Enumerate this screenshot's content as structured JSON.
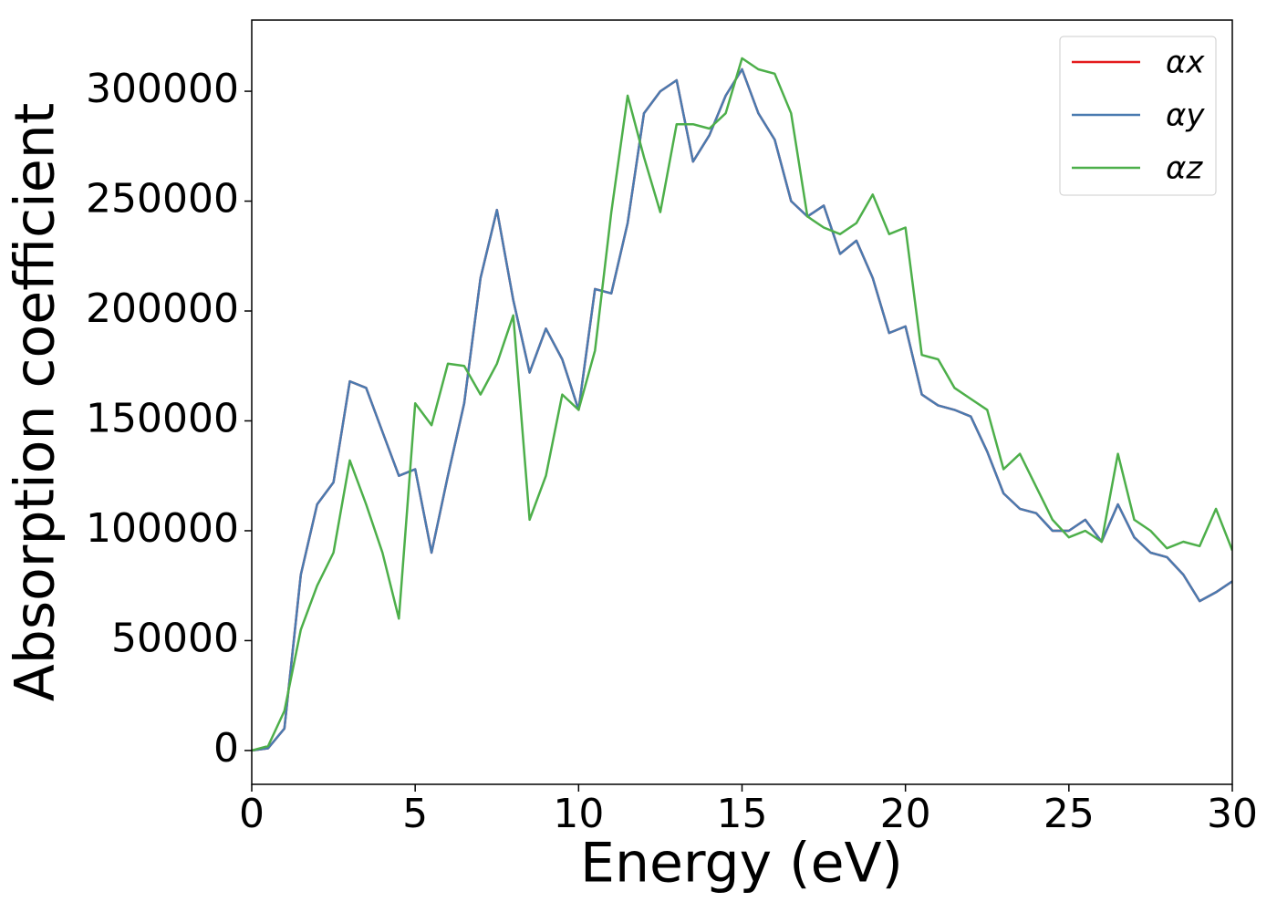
{
  "chart_data": {
    "type": "line",
    "xlabel": "Energy (eV)",
    "ylabel": "Absorption coefficient",
    "x": [
      0,
      0.5,
      1,
      1.5,
      2,
      2.5,
      3,
      3.5,
      4,
      4.5,
      5,
      5.5,
      6,
      6.5,
      7,
      7.5,
      8,
      8.5,
      9,
      9.5,
      10,
      10.5,
      11,
      11.5,
      12,
      12.5,
      13,
      13.5,
      14,
      14.5,
      15,
      15.5,
      16,
      16.5,
      17,
      17.5,
      18,
      18.5,
      19,
      19.5,
      20,
      20.5,
      21,
      21.5,
      22,
      22.5,
      23,
      23.5,
      24,
      24.5,
      25,
      25.5,
      26,
      26.5,
      27,
      27.5,
      28,
      28.5,
      29,
      29.5,
      30
    ],
    "series": [
      {
        "name": "αx",
        "color": "#e41a1c",
        "values": [
          0,
          1000,
          10000,
          80000,
          112000,
          122000,
          168000,
          165000,
          145000,
          125000,
          128000,
          90000,
          125000,
          158000,
          215000,
          246000,
          205000,
          172000,
          192000,
          178000,
          155000,
          210000,
          208000,
          240000,
          290000,
          300000,
          305000,
          268000,
          280000,
          298000,
          310000,
          290000,
          278000,
          250000,
          243000,
          248000,
          226000,
          232000,
          215000,
          190000,
          193000,
          162000,
          157000,
          155000,
          152000,
          136000,
          117000,
          110000,
          108000,
          100000,
          100000,
          105000,
          95000,
          112000,
          97000,
          90000,
          88000,
          80000,
          68000,
          72000,
          77000
        ]
      },
      {
        "name": "αy",
        "color": "#4a7bb0",
        "values": [
          0,
          1000,
          10000,
          80000,
          112000,
          122000,
          168000,
          165000,
          145000,
          125000,
          128000,
          90000,
          125000,
          158000,
          215000,
          246000,
          205000,
          172000,
          192000,
          178000,
          155000,
          210000,
          208000,
          240000,
          290000,
          300000,
          305000,
          268000,
          280000,
          298000,
          310000,
          290000,
          278000,
          250000,
          243000,
          248000,
          226000,
          232000,
          215000,
          190000,
          193000,
          162000,
          157000,
          155000,
          152000,
          136000,
          117000,
          110000,
          108000,
          100000,
          100000,
          105000,
          95000,
          112000,
          97000,
          90000,
          88000,
          80000,
          68000,
          72000,
          77000
        ]
      },
      {
        "name": "αz",
        "color": "#4daf4a",
        "values": [
          0,
          2000,
          18000,
          55000,
          75000,
          90000,
          132000,
          112000,
          90000,
          60000,
          158000,
          148000,
          176000,
          175000,
          162000,
          176000,
          198000,
          105000,
          125000,
          162000,
          155000,
          182000,
          245000,
          298000,
          270000,
          245000,
          285000,
          285000,
          283000,
          290000,
          315000,
          310000,
          308000,
          290000,
          243000,
          238000,
          235000,
          240000,
          253000,
          235000,
          238000,
          180000,
          178000,
          165000,
          160000,
          155000,
          128000,
          135000,
          120000,
          105000,
          97000,
          100000,
          95000,
          135000,
          105000,
          100000,
          92000,
          95000,
          93000,
          110000,
          91000
        ]
      }
    ],
    "xlim": [
      0,
      30
    ],
    "xticks": [
      0,
      5,
      10,
      15,
      20,
      25,
      30
    ],
    "ylim": [
      -15400,
      332400
    ],
    "yticks": [
      0,
      50000,
      100000,
      150000,
      200000,
      250000,
      300000
    ],
    "legend": "upper right"
  }
}
